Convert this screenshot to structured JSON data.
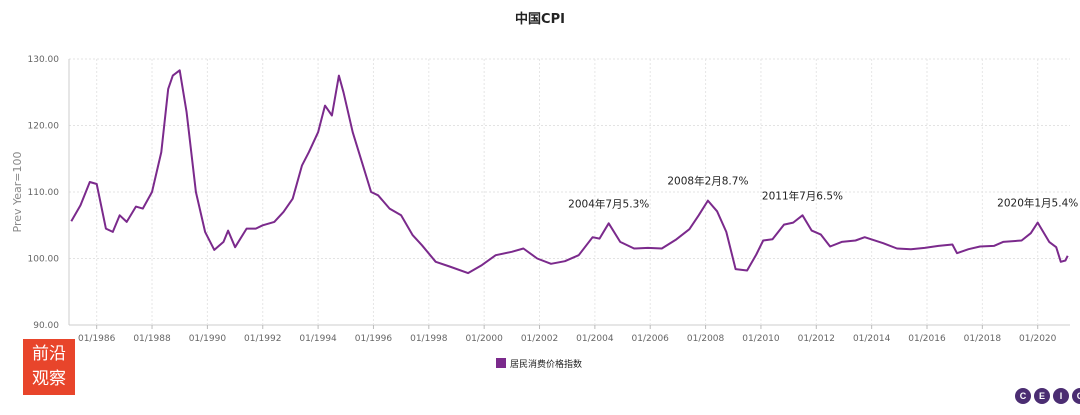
{
  "chart_data": {
    "type": "line",
    "title": "中国CPI",
    "ylabel": "Prev Year=100",
    "xlabel": "",
    "ylim": [
      90,
      130
    ],
    "xlim": [
      "1985-01",
      "2021-03"
    ],
    "yticks": [
      "90.00",
      "100.00",
      "110.00",
      "120.00",
      "130.00"
    ],
    "xticks": [
      "01/1986",
      "01/1988",
      "01/1990",
      "01/1992",
      "01/1994",
      "01/1996",
      "01/1998",
      "01/2000",
      "01/2002",
      "01/2004",
      "01/2006",
      "01/2008",
      "01/2010",
      "01/2012",
      "01/2014",
      "01/2016",
      "01/2018",
      "01/2020"
    ],
    "grid": true,
    "legend_position": "bottom",
    "series": [
      {
        "name": "居民消费价格指数",
        "color": "#7b2a8c",
        "points": [
          [
            "1985-02",
            105.6
          ],
          [
            "1985-06",
            108.0
          ],
          [
            "1985-10",
            111.5
          ],
          [
            "1986-01",
            111.2
          ],
          [
            "1986-05",
            104.5
          ],
          [
            "1986-08",
            104.0
          ],
          [
            "1986-11",
            106.5
          ],
          [
            "1987-02",
            105.5
          ],
          [
            "1987-06",
            107.8
          ],
          [
            "1987-09",
            107.5
          ],
          [
            "1988-01",
            110.0
          ],
          [
            "1988-05",
            116.0
          ],
          [
            "1988-08",
            125.5
          ],
          [
            "1988-10",
            127.5
          ],
          [
            "1989-01",
            128.3
          ],
          [
            "1989-04",
            122.0
          ],
          [
            "1989-08",
            110.0
          ],
          [
            "1989-12",
            104.0
          ],
          [
            "1990-04",
            101.3
          ],
          [
            "1990-08",
            102.5
          ],
          [
            "1990-10",
            104.2
          ],
          [
            "1991-01",
            101.7
          ],
          [
            "1991-06",
            104.5
          ],
          [
            "1991-10",
            104.5
          ],
          [
            "1992-01",
            105.0
          ],
          [
            "1992-06",
            105.5
          ],
          [
            "1992-10",
            107.0
          ],
          [
            "1993-02",
            109.0
          ],
          [
            "1993-06",
            114.0
          ],
          [
            "1993-09",
            116.0
          ],
          [
            "1994-01",
            119.0
          ],
          [
            "1994-04",
            123.0
          ],
          [
            "1994-07",
            121.5
          ],
          [
            "1994-10",
            127.5
          ],
          [
            "1994-12",
            125.0
          ],
          [
            "1995-04",
            119.0
          ],
          [
            "1995-08",
            114.5
          ],
          [
            "1995-12",
            110.0
          ],
          [
            "1996-03",
            109.5
          ],
          [
            "1996-08",
            107.5
          ],
          [
            "1997-01",
            106.5
          ],
          [
            "1997-06",
            103.5
          ],
          [
            "1997-10",
            102.0
          ],
          [
            "1998-04",
            99.5
          ],
          [
            "1998-10",
            98.8
          ],
          [
            "1999-06",
            97.8
          ],
          [
            "1999-12",
            99.0
          ],
          [
            "2000-06",
            100.5
          ],
          [
            "2001-01",
            101.0
          ],
          [
            "2001-06",
            101.5
          ],
          [
            "2001-12",
            100.0
          ],
          [
            "2002-06",
            99.2
          ],
          [
            "2002-12",
            99.6
          ],
          [
            "2003-06",
            100.5
          ],
          [
            "2003-12",
            103.2
          ],
          [
            "2004-03",
            103.0
          ],
          [
            "2004-07",
            105.3
          ],
          [
            "2004-12",
            102.5
          ],
          [
            "2005-06",
            101.5
          ],
          [
            "2005-12",
            101.6
          ],
          [
            "2006-06",
            101.5
          ],
          [
            "2006-12",
            102.8
          ],
          [
            "2007-06",
            104.4
          ],
          [
            "2007-10",
            106.5
          ],
          [
            "2008-02",
            108.7
          ],
          [
            "2008-06",
            107.1
          ],
          [
            "2008-10",
            104.0
          ],
          [
            "2009-02",
            98.4
          ],
          [
            "2009-07",
            98.2
          ],
          [
            "2009-11",
            100.6
          ],
          [
            "2010-02",
            102.7
          ],
          [
            "2010-06",
            102.9
          ],
          [
            "2010-11",
            105.1
          ],
          [
            "2011-03",
            105.4
          ],
          [
            "2011-07",
            106.5
          ],
          [
            "2011-11",
            104.2
          ],
          [
            "2012-03",
            103.6
          ],
          [
            "2012-07",
            101.8
          ],
          [
            "2012-12",
            102.5
          ],
          [
            "2013-06",
            102.7
          ],
          [
            "2013-10",
            103.2
          ],
          [
            "2014-06",
            102.3
          ],
          [
            "2014-12",
            101.5
          ],
          [
            "2015-06",
            101.4
          ],
          [
            "2015-12",
            101.6
          ],
          [
            "2016-06",
            101.9
          ],
          [
            "2016-12",
            102.1
          ],
          [
            "2017-02",
            100.8
          ],
          [
            "2017-07",
            101.4
          ],
          [
            "2017-12",
            101.8
          ],
          [
            "2018-06",
            101.9
          ],
          [
            "2018-10",
            102.5
          ],
          [
            "2019-06",
            102.7
          ],
          [
            "2019-10",
            103.8
          ],
          [
            "2020-01",
            105.4
          ],
          [
            "2020-06",
            102.5
          ],
          [
            "2020-09",
            101.7
          ],
          [
            "2020-11",
            99.5
          ],
          [
            "2021-01",
            99.7
          ],
          [
            "2021-02",
            100.4
          ]
        ]
      }
    ],
    "annotations": [
      {
        "text": "2004年7月5.3%",
        "x": "2004-07",
        "y": 105.3
      },
      {
        "text": "2008年2月8.7%",
        "x": "2008-02",
        "y": 108.7
      },
      {
        "text": "2011年7月6.5%",
        "x": "2011-07",
        "y": 106.5
      },
      {
        "text": "2020年1月5.4%",
        "x": "2020-01",
        "y": 105.4
      }
    ]
  },
  "watermark": {
    "line1": "前沿",
    "line2": "观察"
  },
  "logo": [
    "C",
    "E",
    "I",
    "C"
  ]
}
